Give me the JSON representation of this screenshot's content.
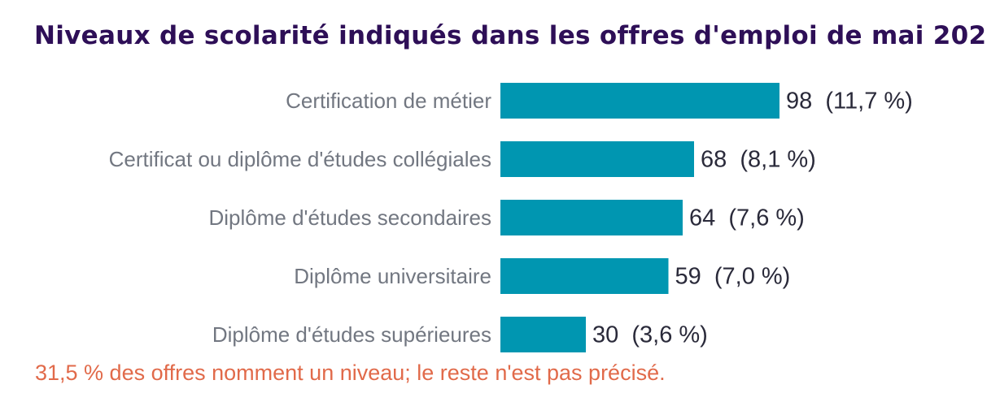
{
  "chart_data": {
    "type": "bar",
    "orientation": "horizontal",
    "title": "Niveaux de scolarité indiqués dans les offres d'emploi de mai 202",
    "categories": [
      "Certification de métier",
      "Certificat ou diplôme d'études collégiales",
      "Diplôme d'études secondaires",
      "Diplôme universitaire",
      "Diplôme d'études supérieures"
    ],
    "values": [
      98,
      68,
      64,
      59,
      30
    ],
    "data_labels": [
      "98  (11,7 %)",
      "68  (8,1 %)",
      "64  (7,6 %)",
      "59  (7,0 %)",
      "30  (3,6 %)"
    ],
    "bar_color": "#0096b1",
    "grid": false,
    "legend": "none",
    "xlim": [
      0,
      98
    ]
  },
  "footnote": "31,5 % des offres nomment un niveau; le reste n'est pas précisé."
}
